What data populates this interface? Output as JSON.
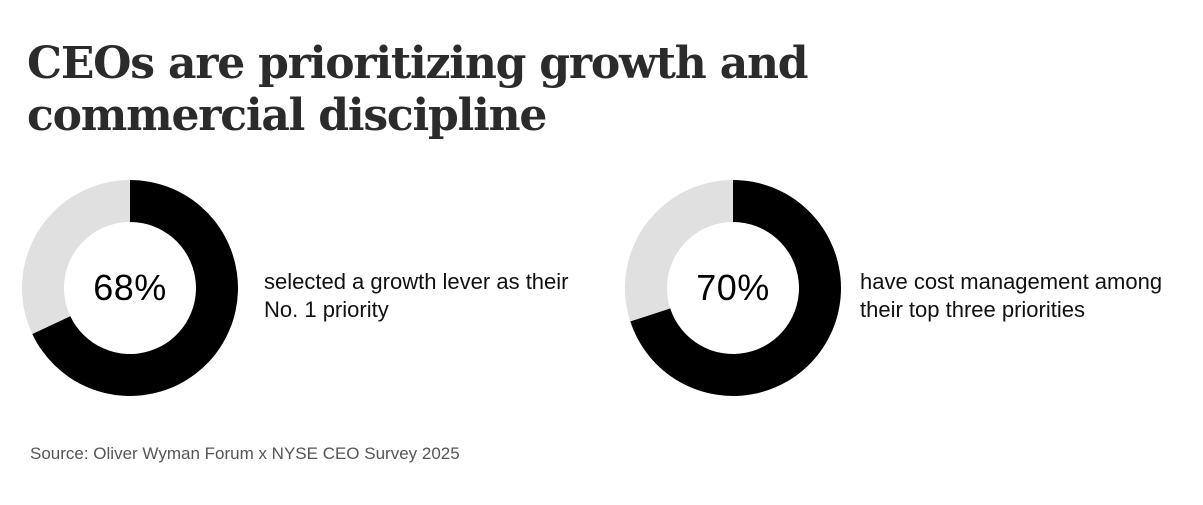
{
  "chart_data": [
    {
      "type": "pie",
      "style": "donut",
      "value": 68,
      "max": 100,
      "unit": "%",
      "center_label": "68%",
      "description": "selected a growth lever as their No. 1 priority",
      "colors": {
        "filled": "#000000",
        "remainder": "#e0e0e0"
      }
    },
    {
      "type": "pie",
      "style": "donut",
      "value": 70,
      "max": 100,
      "unit": "%",
      "center_label": "70%",
      "description": "have cost management among their top three priorities",
      "colors": {
        "filled": "#000000",
        "remainder": "#e0e0e0"
      }
    }
  ],
  "header": {
    "title": "CEOs are prioritizing growth and commercial discipline"
  },
  "footer": {
    "source": "Source: Oliver Wyman Forum x NYSE CEO Survey 2025"
  }
}
